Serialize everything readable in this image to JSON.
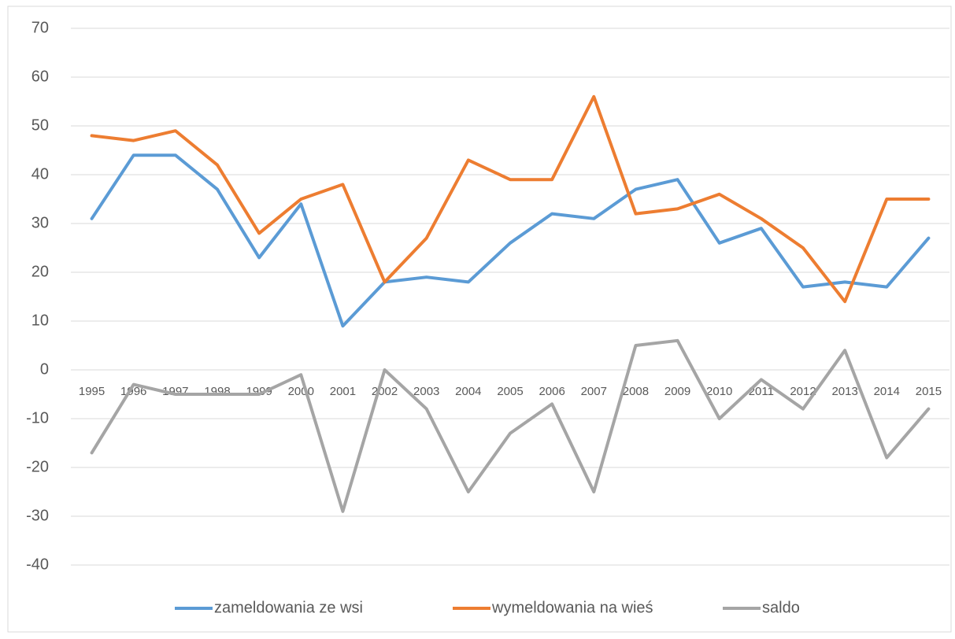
{
  "chart_data": {
    "type": "line",
    "categories": [
      "1995",
      "1996",
      "1997",
      "1998",
      "1999",
      "2000",
      "2001",
      "2002",
      "2003",
      "2004",
      "2005",
      "2006",
      "2007",
      "2008",
      "2009",
      "2010",
      "2011",
      "2012",
      "2013",
      "2014",
      "2015"
    ],
    "series": [
      {
        "name": "zameldowania ze wsi",
        "color": "#5b9bd5",
        "values": [
          31,
          44,
          44,
          37,
          23,
          34,
          9,
          18,
          19,
          18,
          26,
          32,
          31,
          37,
          39,
          26,
          29,
          17,
          18,
          17,
          27
        ]
      },
      {
        "name": "wymeldowania na wieś",
        "color": "#ed7d31",
        "values": [
          48,
          47,
          49,
          42,
          28,
          35,
          38,
          18,
          27,
          43,
          39,
          39,
          56,
          32,
          33,
          36,
          31,
          25,
          14,
          35,
          35
        ]
      },
      {
        "name": "saldo",
        "color": "#a5a5a5",
        "values": [
          -17,
          -3,
          -5,
          -5,
          -5,
          -1,
          -29,
          0,
          -8,
          -25,
          -13,
          -7,
          -25,
          5,
          6,
          -10,
          -2,
          -8,
          4,
          -18,
          -8
        ]
      }
    ],
    "ylim": [
      -40,
      70
    ],
    "yticks": [
      -40,
      -30,
      -20,
      -10,
      0,
      10,
      20,
      30,
      40,
      50,
      60,
      70
    ],
    "grid": true,
    "legend": "bottom"
  }
}
